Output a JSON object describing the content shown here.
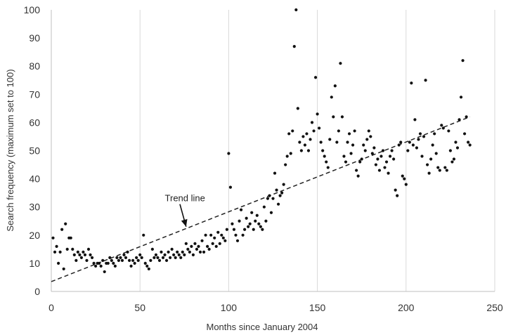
{
  "chart_data": {
    "type": "scatter",
    "title": "",
    "xlabel": "Months since January 2004",
    "ylabel": "Search frequency (maximum set to 100)",
    "xlim": [
      0,
      250
    ],
    "ylim": [
      0,
      100
    ],
    "xticks": [
      0,
      50,
      100,
      150,
      200,
      250
    ],
    "yticks": [
      0,
      10,
      20,
      30,
      40,
      50,
      60,
      70,
      80,
      90,
      100
    ],
    "grid": "vertical",
    "marker_color": "#111111",
    "trend_line": {
      "x": [
        0,
        236
      ],
      "y": [
        3.5,
        62
      ],
      "style": "dashed"
    },
    "annotation": {
      "text": "Trend line",
      "x": 64,
      "y": 33,
      "arrow_to": [
        76,
        23
      ]
    },
    "points": [
      [
        1,
        19
      ],
      [
        2,
        14
      ],
      [
        3,
        16
      ],
      [
        4,
        10
      ],
      [
        5,
        14
      ],
      [
        6,
        22
      ],
      [
        7,
        8
      ],
      [
        8,
        24
      ],
      [
        9,
        15
      ],
      [
        10,
        19
      ],
      [
        11,
        19
      ],
      [
        12,
        15
      ],
      [
        13,
        13
      ],
      [
        14,
        11
      ],
      [
        15,
        14
      ],
      [
        16,
        13
      ],
      [
        17,
        12
      ],
      [
        18,
        14
      ],
      [
        19,
        13
      ],
      [
        20,
        11
      ],
      [
        21,
        15
      ],
      [
        22,
        13
      ],
      [
        23,
        12
      ],
      [
        24,
        10
      ],
      [
        25,
        9
      ],
      [
        26,
        10
      ],
      [
        27,
        10
      ],
      [
        28,
        9
      ],
      [
        29,
        11
      ],
      [
        30,
        7
      ],
      [
        31,
        10
      ],
      [
        32,
        10
      ],
      [
        33,
        12
      ],
      [
        34,
        11
      ],
      [
        35,
        10
      ],
      [
        36,
        9
      ],
      [
        37,
        12
      ],
      [
        38,
        11
      ],
      [
        39,
        12
      ],
      [
        40,
        11
      ],
      [
        41,
        13
      ],
      [
        42,
        12
      ],
      [
        43,
        14
      ],
      [
        44,
        11
      ],
      [
        45,
        9
      ],
      [
        46,
        11
      ],
      [
        47,
        10
      ],
      [
        48,
        12
      ],
      [
        49,
        11
      ],
      [
        50,
        13
      ],
      [
        51,
        12
      ],
      [
        52,
        20
      ],
      [
        53,
        10
      ],
      [
        54,
        9
      ],
      [
        55,
        8
      ],
      [
        56,
        11
      ],
      [
        57,
        15
      ],
      [
        58,
        12
      ],
      [
        59,
        13
      ],
      [
        60,
        12
      ],
      [
        61,
        11
      ],
      [
        62,
        14
      ],
      [
        63,
        12
      ],
      [
        64,
        13
      ],
      [
        65,
        11
      ],
      [
        66,
        14
      ],
      [
        67,
        12
      ],
      [
        68,
        15
      ],
      [
        69,
        13
      ],
      [
        70,
        12
      ],
      [
        71,
        14
      ],
      [
        72,
        13
      ],
      [
        73,
        12
      ],
      [
        74,
        14
      ],
      [
        75,
        13
      ],
      [
        76,
        17
      ],
      [
        77,
        15
      ],
      [
        78,
        14
      ],
      [
        79,
        16
      ],
      [
        80,
        13
      ],
      [
        81,
        17
      ],
      [
        82,
        15
      ],
      [
        83,
        16
      ],
      [
        84,
        14
      ],
      [
        85,
        18
      ],
      [
        86,
        14
      ],
      [
        87,
        20
      ],
      [
        88,
        16
      ],
      [
        89,
        15
      ],
      [
        90,
        20
      ],
      [
        91,
        17
      ],
      [
        92,
        19
      ],
      [
        93,
        16
      ],
      [
        94,
        21
      ],
      [
        95,
        17
      ],
      [
        96,
        20
      ],
      [
        97,
        19
      ],
      [
        98,
        18
      ],
      [
        99,
        22
      ],
      [
        100,
        49
      ],
      [
        101,
        37
      ],
      [
        102,
        24
      ],
      [
        103,
        22
      ],
      [
        104,
        20
      ],
      [
        105,
        18
      ],
      [
        106,
        25
      ],
      [
        107,
        29
      ],
      [
        108,
        20
      ],
      [
        109,
        22
      ],
      [
        110,
        26
      ],
      [
        111,
        23
      ],
      [
        112,
        24
      ],
      [
        113,
        28
      ],
      [
        114,
        22
      ],
      [
        115,
        25
      ],
      [
        116,
        27
      ],
      [
        117,
        24
      ],
      [
        118,
        23
      ],
      [
        119,
        22
      ],
      [
        120,
        30
      ],
      [
        121,
        25
      ],
      [
        122,
        33
      ],
      [
        123,
        34
      ],
      [
        124,
        28
      ],
      [
        125,
        33
      ],
      [
        126,
        42
      ],
      [
        127,
        36
      ],
      [
        128,
        31
      ],
      [
        129,
        34
      ],
      [
        130,
        35
      ],
      [
        131,
        38
      ],
      [
        132,
        45
      ],
      [
        133,
        48
      ],
      [
        134,
        56
      ],
      [
        135,
        49
      ],
      [
        136,
        57
      ],
      [
        137,
        87
      ],
      [
        138,
        100
      ],
      [
        139,
        65
      ],
      [
        140,
        53
      ],
      [
        141,
        50
      ],
      [
        142,
        55
      ],
      [
        143,
        52
      ],
      [
        144,
        56
      ],
      [
        145,
        50
      ],
      [
        146,
        54
      ],
      [
        147,
        60
      ],
      [
        148,
        57
      ],
      [
        149,
        76
      ],
      [
        150,
        63
      ],
      [
        151,
        58
      ],
      [
        152,
        53
      ],
      [
        153,
        50
      ],
      [
        154,
        48
      ],
      [
        155,
        46
      ],
      [
        156,
        44
      ],
      [
        157,
        54
      ],
      [
        158,
        69
      ],
      [
        159,
        62
      ],
      [
        160,
        73
      ],
      [
        161,
        53
      ],
      [
        162,
        57
      ],
      [
        163,
        81
      ],
      [
        164,
        62
      ],
      [
        165,
        48
      ],
      [
        166,
        46
      ],
      [
        167,
        53
      ],
      [
        168,
        56
      ],
      [
        169,
        49
      ],
      [
        170,
        52
      ],
      [
        171,
        57
      ],
      [
        172,
        43
      ],
      [
        173,
        41
      ],
      [
        174,
        46
      ],
      [
        175,
        47
      ],
      [
        176,
        52
      ],
      [
        177,
        50
      ],
      [
        178,
        54
      ],
      [
        179,
        57
      ],
      [
        180,
        55
      ],
      [
        181,
        49
      ],
      [
        182,
        51
      ],
      [
        183,
        45
      ],
      [
        184,
        47
      ],
      [
        185,
        43
      ],
      [
        186,
        48
      ],
      [
        187,
        50
      ],
      [
        188,
        44
      ],
      [
        189,
        46
      ],
      [
        190,
        42
      ],
      [
        191,
        48
      ],
      [
        192,
        50
      ],
      [
        193,
        47
      ],
      [
        194,
        36
      ],
      [
        195,
        34
      ],
      [
        196,
        52
      ],
      [
        197,
        53
      ],
      [
        198,
        41
      ],
      [
        199,
        40
      ],
      [
        200,
        38
      ],
      [
        201,
        50
      ],
      [
        202,
        53
      ],
      [
        203,
        74
      ],
      [
        204,
        52
      ],
      [
        205,
        61
      ],
      [
        206,
        51
      ],
      [
        207,
        54
      ],
      [
        208,
        56
      ],
      [
        209,
        48
      ],
      [
        210,
        55
      ],
      [
        211,
        75
      ],
      [
        212,
        45
      ],
      [
        213,
        42
      ],
      [
        214,
        47
      ],
      [
        215,
        52
      ],
      [
        216,
        56
      ],
      [
        217,
        49
      ],
      [
        218,
        44
      ],
      [
        219,
        43
      ],
      [
        220,
        59
      ],
      [
        221,
        58
      ],
      [
        222,
        44
      ],
      [
        223,
        43
      ],
      [
        224,
        57
      ],
      [
        225,
        50
      ],
      [
        226,
        46
      ],
      [
        227,
        47
      ],
      [
        228,
        53
      ],
      [
        229,
        51
      ],
      [
        230,
        61
      ],
      [
        231,
        69
      ],
      [
        232,
        82
      ],
      [
        233,
        56
      ],
      [
        234,
        62
      ],
      [
        235,
        53
      ],
      [
        236,
        52
      ]
    ]
  }
}
